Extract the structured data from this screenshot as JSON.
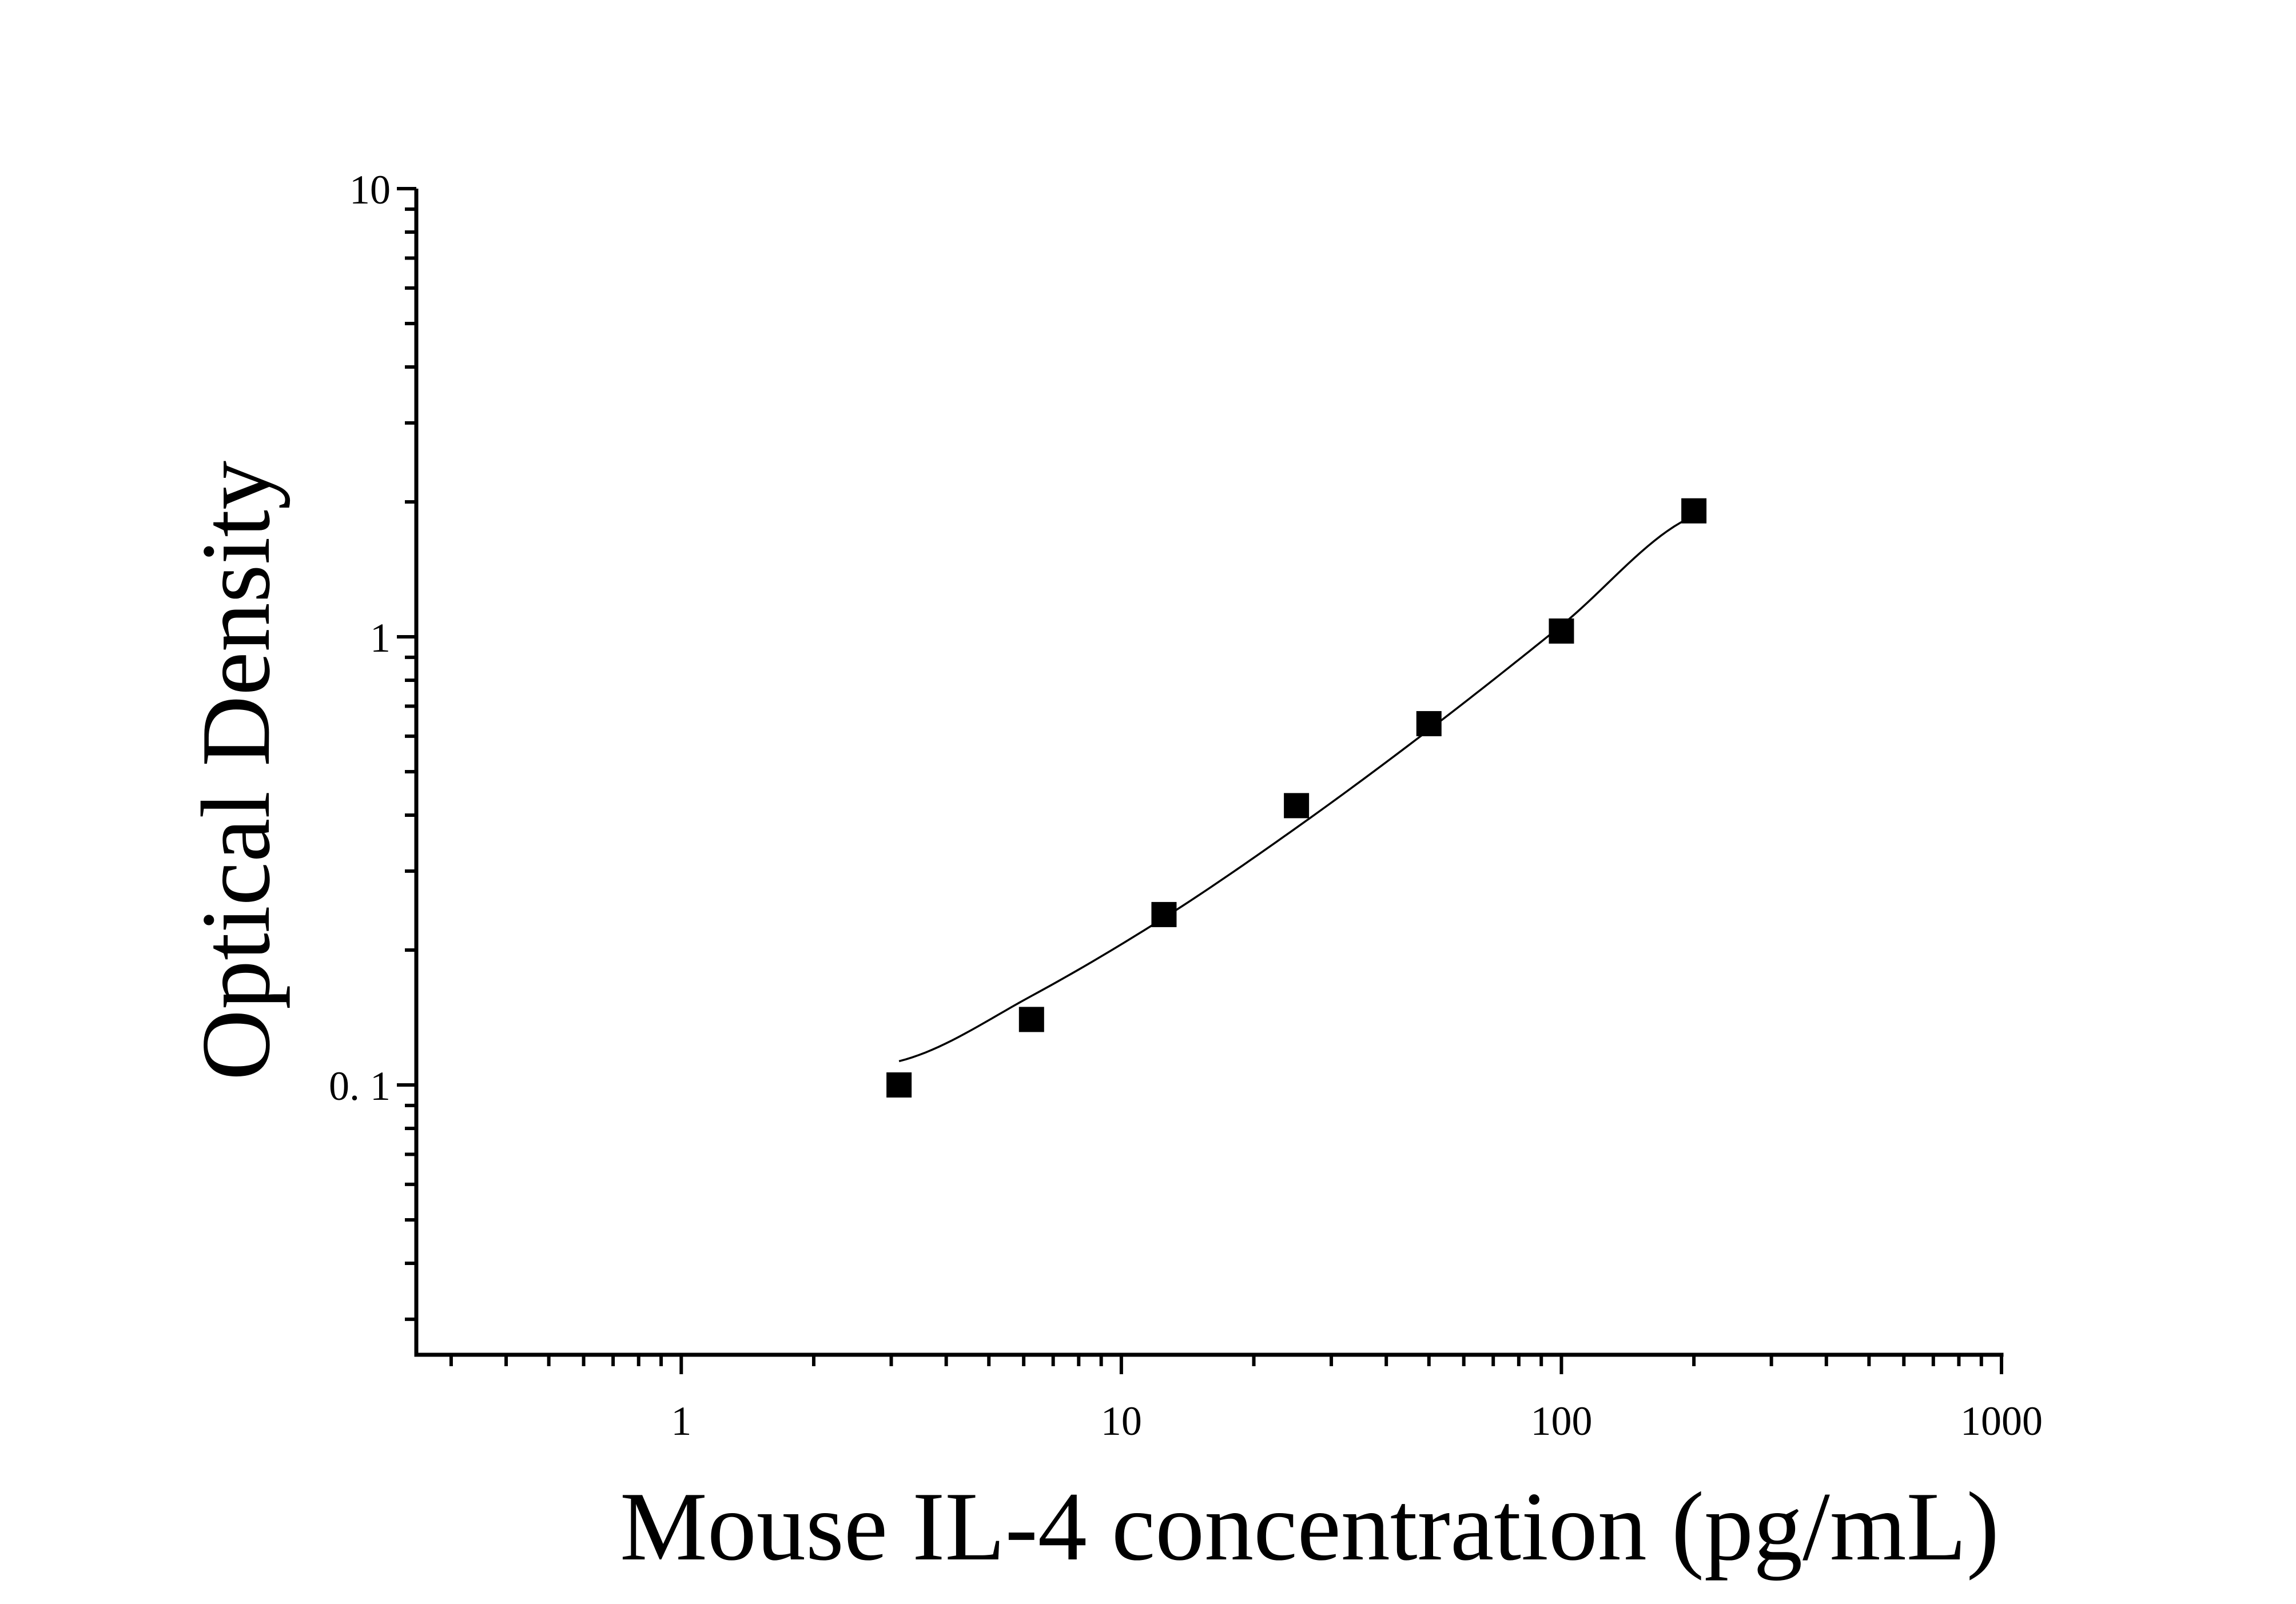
{
  "chart_data": {
    "type": "scatter",
    "title": "",
    "xlabel": "Mouse IL-4 concentration (pg/mL)",
    "ylabel": "Optical Density",
    "x_scale": "log",
    "y_scale": "log",
    "xlim": [
      0.25,
      1000
    ],
    "ylim": [
      0.025,
      10
    ],
    "x_ticks": [
      {
        "value": 1,
        "label": "1"
      },
      {
        "value": 10,
        "label": "10"
      },
      {
        "value": 100,
        "label": "100"
      },
      {
        "value": 1000,
        "label": "1000"
      }
    ],
    "y_ticks": [
      {
        "value": 0.1,
        "label": "0. 1"
      },
      {
        "value": 1,
        "label": "1"
      },
      {
        "value": 10,
        "label": "10"
      }
    ],
    "grid": false,
    "legend": "none",
    "series": [
      {
        "marker": "square",
        "color": "#000000",
        "points": [
          {
            "x": 3.125,
            "y": 0.1
          },
          {
            "x": 6.25,
            "y": 0.14
          },
          {
            "x": 12.5,
            "y": 0.24
          },
          {
            "x": 25,
            "y": 0.42
          },
          {
            "x": 50,
            "y": 0.64
          },
          {
            "x": 100,
            "y": 1.03
          },
          {
            "x": 200,
            "y": 1.91
          }
        ]
      }
    ],
    "fit_curve": {
      "type": "line",
      "color": "#000000",
      "x_range": [
        3.125,
        200
      ],
      "points": [
        {
          "x": 3.125,
          "y": 0.113
        },
        {
          "x": 6.25,
          "y": 0.158
        },
        {
          "x": 12.5,
          "y": 0.236
        },
        {
          "x": 25,
          "y": 0.375
        },
        {
          "x": 50,
          "y": 0.62
        },
        {
          "x": 100,
          "y": 1.06
        },
        {
          "x": 200,
          "y": 1.86
        }
      ]
    }
  }
}
